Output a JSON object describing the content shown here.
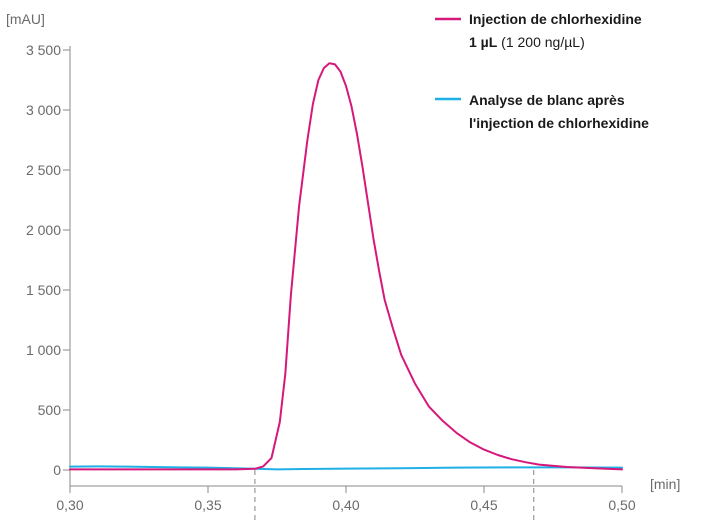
{
  "chart_data": {
    "type": "line",
    "title": "",
    "xlabel": "[min]",
    "ylabel": "[mAU]",
    "xlim": [
      0.3,
      0.5
    ],
    "ylim": [
      -100,
      3500
    ],
    "x_ticks": [
      0.3,
      0.35,
      0.4,
      0.45,
      0.5
    ],
    "x_tick_labels": [
      "0,30",
      "0,35",
      "0,40",
      "0,45",
      "0,50"
    ],
    "y_ticks": [
      0,
      500,
      1000,
      1500,
      2000,
      2500,
      3000,
      3500
    ],
    "y_tick_labels": [
      "0",
      "500",
      "1 000",
      "1 500",
      "2 000",
      "2 500",
      "3 000",
      "3 500"
    ],
    "integration_markers_x": [
      0.367,
      0.468
    ],
    "grid": false,
    "legend_position": "top-right",
    "series": [
      {
        "name_lines": [
          {
            "bold": "Injection de chlorhexidine",
            "normal": ""
          },
          {
            "bold": "1 µL",
            "normal": " (1 200 ng/µL)"
          }
        ],
        "color": "#d6187a",
        "x": [
          0.3,
          0.33,
          0.36,
          0.367,
          0.37,
          0.373,
          0.376,
          0.378,
          0.38,
          0.383,
          0.386,
          0.388,
          0.39,
          0.392,
          0.394,
          0.396,
          0.398,
          0.4,
          0.402,
          0.404,
          0.406,
          0.408,
          0.41,
          0.412,
          0.414,
          0.417,
          0.42,
          0.425,
          0.43,
          0.435,
          0.44,
          0.445,
          0.45,
          0.455,
          0.46,
          0.465,
          0.47,
          0.48,
          0.49,
          0.5
        ],
        "y": [
          5,
          5,
          5,
          10,
          30,
          100,
          400,
          800,
          1450,
          2200,
          2750,
          3050,
          3250,
          3350,
          3390,
          3380,
          3320,
          3200,
          3030,
          2800,
          2520,
          2220,
          1920,
          1660,
          1420,
          1180,
          960,
          720,
          530,
          410,
          310,
          230,
          170,
          125,
          90,
          65,
          45,
          25,
          15,
          5
        ]
      },
      {
        "name_lines": [
          {
            "bold": "Analyse de blanc après",
            "normal": ""
          },
          {
            "bold": "l'injection de chlorhexidine",
            "normal": ""
          }
        ],
        "color": "#1fb0e6",
        "x": [
          0.3,
          0.31,
          0.32,
          0.33,
          0.34,
          0.35,
          0.36,
          0.367,
          0.375,
          0.385,
          0.4,
          0.42,
          0.44,
          0.46,
          0.48,
          0.5
        ],
        "y": [
          28,
          30,
          28,
          25,
          22,
          20,
          15,
          10,
          5,
          8,
          12,
          15,
          20,
          22,
          22,
          20
        ]
      }
    ]
  }
}
